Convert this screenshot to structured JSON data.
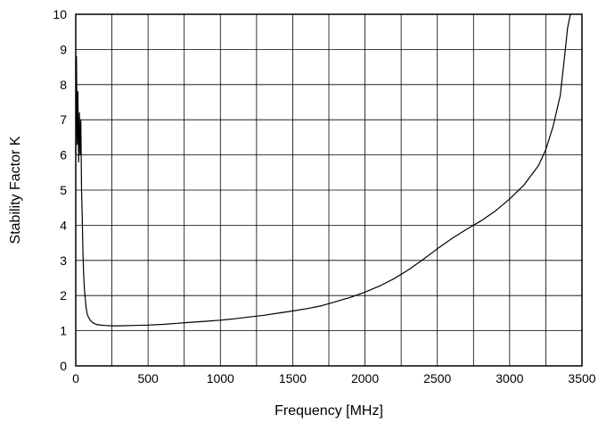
{
  "chart_data": {
    "type": "line",
    "title": "",
    "xlabel": "Frequency [MHz]",
    "ylabel": "Stability Factor K",
    "xlim": [
      0,
      3500
    ],
    "ylim": [
      0,
      10
    ],
    "x_ticks": [
      0,
      500,
      1000,
      1500,
      2000,
      2500,
      3000,
      3500
    ],
    "y_ticks": [
      0,
      1,
      2,
      3,
      4,
      5,
      6,
      7,
      8,
      9,
      10
    ],
    "grid": true,
    "series": [
      {
        "color": "#000000",
        "points": [
          [
            0,
            6.0
          ],
          [
            5,
            8.8
          ],
          [
            10,
            6.3
          ],
          [
            15,
            7.8
          ],
          [
            20,
            5.8
          ],
          [
            25,
            7.2
          ],
          [
            30,
            6.0
          ],
          [
            35,
            7.0
          ],
          [
            40,
            5.0
          ],
          [
            45,
            4.2
          ],
          [
            50,
            3.2
          ],
          [
            55,
            2.6
          ],
          [
            60,
            2.2
          ],
          [
            70,
            1.7
          ],
          [
            80,
            1.45
          ],
          [
            100,
            1.3
          ],
          [
            120,
            1.22
          ],
          [
            150,
            1.17
          ],
          [
            200,
            1.15
          ],
          [
            250,
            1.14
          ],
          [
            300,
            1.14
          ],
          [
            400,
            1.15
          ],
          [
            500,
            1.16
          ],
          [
            600,
            1.18
          ],
          [
            700,
            1.21
          ],
          [
            800,
            1.24
          ],
          [
            900,
            1.27
          ],
          [
            1000,
            1.3
          ],
          [
            1100,
            1.34
          ],
          [
            1200,
            1.39
          ],
          [
            1300,
            1.44
          ],
          [
            1400,
            1.5
          ],
          [
            1500,
            1.56
          ],
          [
            1600,
            1.63
          ],
          [
            1700,
            1.71
          ],
          [
            1800,
            1.83
          ],
          [
            1900,
            1.95
          ],
          [
            2000,
            2.1
          ],
          [
            2100,
            2.27
          ],
          [
            2200,
            2.48
          ],
          [
            2300,
            2.73
          ],
          [
            2400,
            3.02
          ],
          [
            2500,
            3.33
          ],
          [
            2600,
            3.62
          ],
          [
            2700,
            3.88
          ],
          [
            2800,
            4.12
          ],
          [
            2900,
            4.4
          ],
          [
            3000,
            4.75
          ],
          [
            3100,
            5.15
          ],
          [
            3200,
            5.7
          ],
          [
            3250,
            6.15
          ],
          [
            3300,
            6.8
          ],
          [
            3350,
            7.7
          ],
          [
            3380,
            8.8
          ],
          [
            3400,
            9.6
          ],
          [
            3420,
            10.0
          ]
        ]
      }
    ]
  }
}
